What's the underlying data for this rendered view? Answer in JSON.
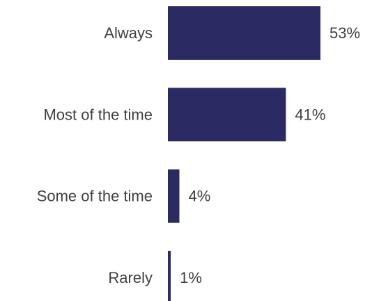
{
  "chart_data": {
    "type": "bar",
    "orientation": "horizontal",
    "categories": [
      "Always",
      "Most of the time",
      "Some of the time",
      "Rarely"
    ],
    "values": [
      53,
      41,
      4,
      1
    ],
    "value_labels": [
      "53%",
      "41%",
      "4%",
      "1%"
    ],
    "title": "",
    "xlabel": "",
    "ylabel": "",
    "xlim": [
      0,
      53
    ],
    "grid": false,
    "legend": "none",
    "bar_color": "#2b2a62"
  }
}
